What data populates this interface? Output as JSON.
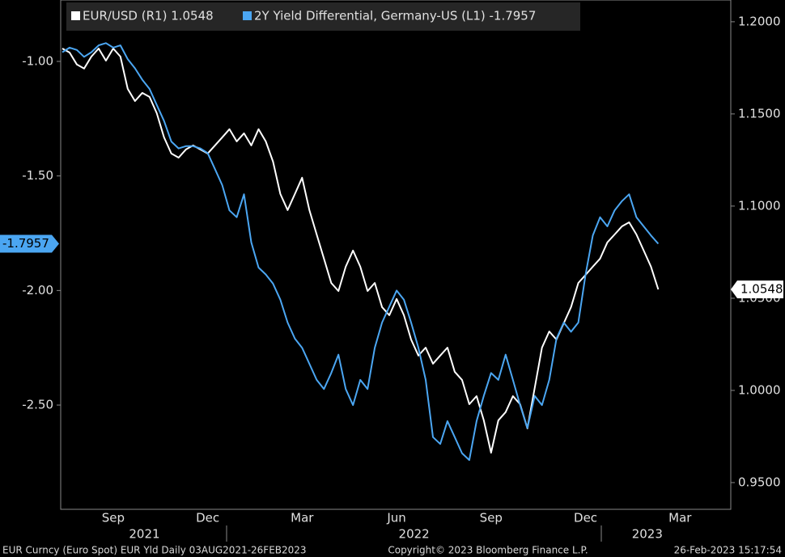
{
  "chart_data": {
    "type": "line",
    "legend": [
      "EUR/USD (R1) 1.0548",
      "2Y Yield Differential, Germany-US (L1) -1.7957"
    ],
    "categories": [
      null,
      null,
      null,
      null,
      null,
      null,
      null,
      "Sep",
      null,
      null,
      null,
      null,
      null,
      null,
      null,
      null,
      null,
      null,
      null,
      null,
      "Dec",
      null,
      null,
      null,
      null,
      null,
      null,
      null,
      null,
      null,
      null,
      null,
      null,
      "Mar",
      null,
      null,
      null,
      null,
      null,
      null,
      null,
      null,
      null,
      null,
      null,
      null,
      "Jun",
      null,
      null,
      null,
      null,
      null,
      null,
      null,
      null,
      null,
      null,
      null,
      null,
      "Sep",
      null,
      null,
      null,
      null,
      null,
      null,
      null,
      null,
      null,
      null,
      null,
      null,
      "Dec",
      null,
      null,
      null,
      null,
      null,
      null,
      null,
      null,
      null,
      null,
      null,
      null,
      "Mar"
    ],
    "years": [
      "2021",
      "2022",
      "2023"
    ],
    "series": [
      {
        "name": "EUR/USD (R1)",
        "color": "#ffffff",
        "axis": "y2",
        "values": [
          1.1855,
          1.1833,
          1.1768,
          1.1746,
          1.1811,
          1.1855,
          1.1789,
          1.1855,
          1.1811,
          1.1636,
          1.157,
          1.1614,
          1.1592,
          1.1504,
          1.1373,
          1.1285,
          1.1263,
          1.1307,
          1.1329,
          1.1307,
          1.1285,
          1.1329,
          1.1373,
          1.1417,
          1.1351,
          1.1395,
          1.1329,
          1.1417,
          1.1351,
          1.1241,
          1.1066,
          1.0978,
          1.1066,
          1.1154,
          1.0978,
          1.0846,
          1.0715,
          1.0583,
          1.0539,
          1.0671,
          1.0759,
          1.0671,
          1.0539,
          1.0583,
          1.0452,
          1.0408,
          1.0496,
          1.0408,
          1.0276,
          1.0189,
          1.0232,
          1.0145,
          1.0189,
          1.0232,
          1.0101,
          1.0057,
          0.9925,
          0.9969,
          0.9838,
          0.9662,
          0.9838,
          0.9882,
          0.9969,
          0.9925,
          0.9794,
          1.0013,
          1.0232,
          1.032,
          1.0276,
          1.0364,
          1.0452,
          1.0583,
          1.0627,
          1.0671,
          1.0715,
          1.0803,
          1.0846,
          1.089,
          1.0912,
          1.0846,
          1.0759,
          1.0671,
          1.0548,
          null,
          null,
          null
        ]
      },
      {
        "name": "2Y Yield Differential, Germany-US (L1)",
        "color": "#4ba6f2",
        "values": [
          -0.96,
          -0.94,
          -0.95,
          -0.98,
          -0.96,
          -0.93,
          -0.92,
          -0.94,
          -0.93,
          -0.99,
          -1.03,
          -1.08,
          -1.12,
          -1.19,
          -1.26,
          -1.35,
          -1.38,
          -1.37,
          -1.37,
          -1.38,
          -1.4,
          -1.47,
          -1.54,
          -1.65,
          -1.68,
          -1.58,
          -1.79,
          -1.9,
          -1.93,
          -1.97,
          -2.04,
          -2.14,
          -2.21,
          -2.25,
          -2.32,
          -2.39,
          -2.43,
          -2.36,
          -2.28,
          -2.43,
          -2.5,
          -2.39,
          -2.43,
          -2.25,
          -2.14,
          -2.07,
          -2.0,
          -2.04,
          -2.14,
          -2.25,
          -2.39,
          -2.64,
          -2.67,
          -2.57,
          -2.64,
          -2.71,
          -2.74,
          -2.57,
          -2.46,
          -2.36,
          -2.39,
          -2.28,
          -2.39,
          -2.5,
          -2.6,
          -2.46,
          -2.5,
          -2.39,
          -2.21,
          -2.14,
          -2.18,
          -2.14,
          -1.93,
          -1.76,
          -1.68,
          -1.72,
          -1.65,
          -1.61,
          -1.58,
          -1.68,
          -1.72,
          -1.76,
          -1.7957,
          null,
          null,
          null
        ]
      }
    ],
    "ylim": [
      -0.732,
      -2.955
    ],
    "yticks": [
      {
        "value": -1,
        "label": "-1.00"
      },
      {
        "value": -1.5,
        "label": "-1.50"
      },
      {
        "value": -2,
        "label": "-2.00"
      },
      {
        "value": -2.5,
        "label": "-2.50"
      }
    ],
    "y2lim": [
      1.2118,
      0.9355
    ],
    "y2ticks": [
      {
        "value": 1.2,
        "label": "1.2000"
      },
      {
        "value": 1.15,
        "label": "1.1500"
      },
      {
        "value": 1.1,
        "label": "1.1000"
      },
      {
        "value": 1.05,
        "label": "1.0500"
      },
      {
        "value": 1,
        "label": "1.0000"
      },
      {
        "value": 0.95,
        "label": "0.9500"
      }
    ],
    "footer": {
      "left": "EUR Curncy (Euro Spot) EUR Yld  Daily 03AUG2021-26FEB2023",
      "center": "Copyright© 2023 Bloomberg Finance L.P.",
      "right": "26-Feb-2023 15:17:54"
    }
  }
}
